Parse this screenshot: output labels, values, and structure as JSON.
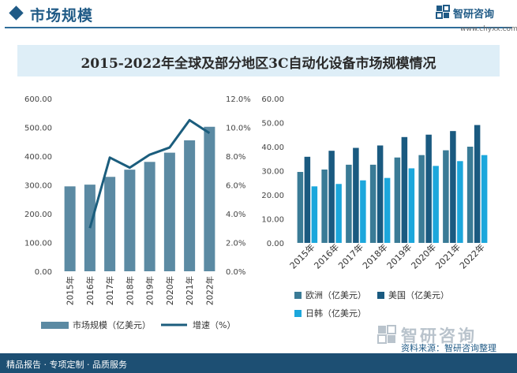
{
  "header": {
    "title": "市场规模"
  },
  "brand": {
    "name": "智研咨询",
    "url": "www.chyxx.com"
  },
  "main_title": "2015-2022年全球及部分地区3C自动化设备市场规模情况",
  "chart_data": [
    {
      "type": "bar",
      "title": "",
      "categories": [
        "2015年",
        "2016年",
        "2017年",
        "2018年",
        "2019年",
        "2020年",
        "2021年",
        "2022年"
      ],
      "series": [
        {
          "name": "市场规模（亿美元）",
          "type": "bar",
          "axis": "left",
          "values": [
            295,
            301,
            328,
            353,
            380,
            412,
            455,
            502
          ]
        },
        {
          "name": "增速（%）",
          "type": "line",
          "axis": "right",
          "values": [
            null,
            3.0,
            7.9,
            7.2,
            8.1,
            8.6,
            10.5,
            9.6
          ]
        }
      ],
      "y_left": {
        "min": 0,
        "max": 600,
        "step": 100,
        "ticks": [
          "0.00",
          "100.00",
          "200.00",
          "300.00",
          "400.00",
          "500.00",
          "600.00"
        ]
      },
      "y_right": {
        "min": 0,
        "max": 12,
        "step": 2,
        "ticks": [
          "0.0%",
          "2.0%",
          "4.0%",
          "6.0%",
          "8.0%",
          "10.0%",
          "12.0%"
        ]
      },
      "legend_position": "bottom",
      "colors": {
        "bar": "#5b8aa3",
        "line": "#1b5d7d"
      }
    },
    {
      "type": "bar",
      "title": "",
      "categories": [
        "2015年",
        "2016年",
        "2017年",
        "2018年",
        "2019年",
        "2020年",
        "2021年",
        "2022年"
      ],
      "series": [
        {
          "name": "欧洲（亿美元）",
          "color": "#3a7b96",
          "values": [
            29.5,
            30.5,
            32.5,
            32.5,
            35.5,
            36.5,
            38.5,
            40
          ]
        },
        {
          "name": "美国（亿美元）",
          "color": "#1a5a80",
          "values": [
            35.8,
            38.3,
            39.5,
            40.5,
            44,
            45,
            46.5,
            49
          ]
        },
        {
          "name": "日韩（亿美元）",
          "color": "#1ca7dc",
          "values": [
            23.5,
            24.5,
            26,
            27,
            31,
            32,
            34,
            36.5
          ]
        }
      ],
      "y": {
        "min": 0,
        "max": 60,
        "step": 10,
        "ticks": [
          "0.00",
          "10.00",
          "20.00",
          "30.00",
          "40.00",
          "50.00",
          "60.00"
        ]
      },
      "legend_position": "bottom"
    }
  ],
  "footer": {
    "text": "精品报告 · 专项定制 · 品质服务",
    "source": "资料来源：智研咨询整理",
    "source_logo": "智研咨询"
  }
}
